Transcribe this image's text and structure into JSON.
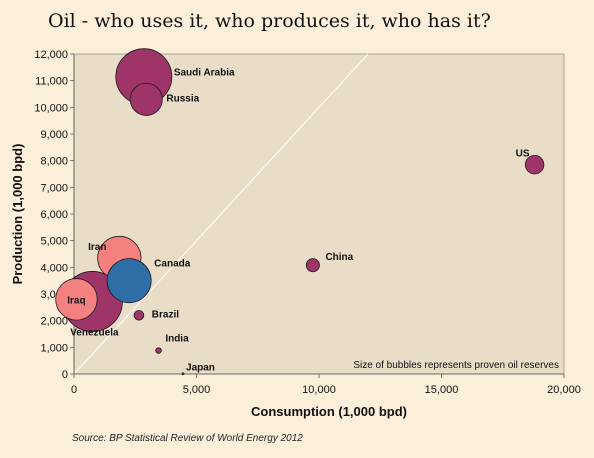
{
  "chart_data": {
    "type": "scatter",
    "title": "Oil - who uses it, who produces it, who has it?",
    "xlabel": "Consumption (1,000 bpd)",
    "ylabel": "Production (1,000 bpd)",
    "xlim": [
      0,
      20000
    ],
    "ylim": [
      0,
      12000
    ],
    "x_ticks": [
      0,
      5000,
      10000,
      15000,
      20000
    ],
    "y_ticks": [
      0,
      1000,
      2000,
      3000,
      4000,
      5000,
      6000,
      7000,
      8000,
      9000,
      10000,
      11000,
      12000
    ],
    "grid": false,
    "reference_line": "y = x",
    "note": "Size of bubbles represents proven oil reserves",
    "source": "Source: BP Statistical Review of World Energy 2012",
    "colors": {
      "plot_background": "#e9ddc8",
      "page_background": "#fcefd9",
      "bubble_default": "#9e3468",
      "bubble_iran_iraq": "#f48080",
      "bubble_canada": "#2f6ea6",
      "reference_line": "#ffffff"
    },
    "points": [
      {
        "name": "Saudi Arabia",
        "x": 2850,
        "y": 11150,
        "reserves_rel": 1.0,
        "color": "#9e3468"
      },
      {
        "name": "Russia",
        "x": 2950,
        "y": 10300,
        "reserves_rel": 0.33,
        "color": "#9e3468"
      },
      {
        "name": "US",
        "x": 18800,
        "y": 7850,
        "reserves_rel": 0.11,
        "color": "#9e3468"
      },
      {
        "name": "China",
        "x": 9750,
        "y": 4080,
        "reserves_rel": 0.055,
        "color": "#9e3468"
      },
      {
        "name": "Iran",
        "x": 1850,
        "y": 4350,
        "reserves_rel": 0.6,
        "color": "#f48080"
      },
      {
        "name": "Canada",
        "x": 2250,
        "y": 3500,
        "reserves_rel": 0.62,
        "color": "#2f6ea6"
      },
      {
        "name": "Venezuela",
        "x": 750,
        "y": 2720,
        "reserves_rel": 1.15,
        "color": "#9e3468"
      },
      {
        "name": "Iraq",
        "x": 100,
        "y": 2800,
        "reserves_rel": 0.55,
        "color": "#f48080"
      },
      {
        "name": "Brazil",
        "x": 2650,
        "y": 2200,
        "reserves_rel": 0.03,
        "color": "#9e3468"
      },
      {
        "name": "India",
        "x": 3450,
        "y": 880,
        "reserves_rel": 0.01,
        "color": "#9e3468"
      },
      {
        "name": "Japan",
        "x": 4450,
        "y": 10,
        "reserves_rel": 0.0,
        "color": "#9e3468"
      }
    ]
  }
}
